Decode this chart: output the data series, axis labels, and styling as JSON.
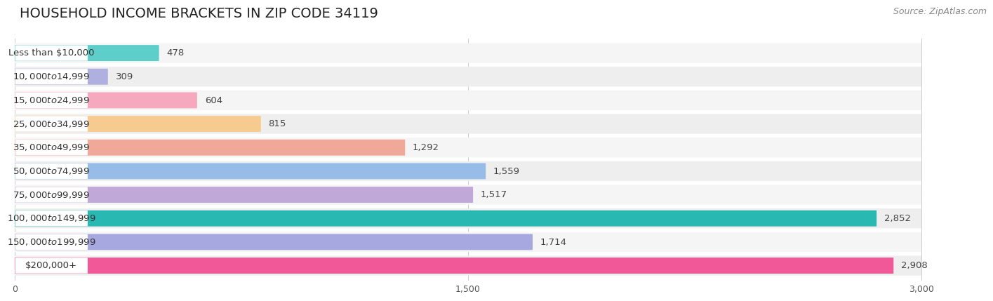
{
  "title": "HOUSEHOLD INCOME BRACKETS IN ZIP CODE 34119",
  "source": "Source: ZipAtlas.com",
  "categories": [
    "Less than $10,000",
    "$10,000 to $14,999",
    "$15,000 to $24,999",
    "$25,000 to $34,999",
    "$35,000 to $49,999",
    "$50,000 to $74,999",
    "$75,000 to $99,999",
    "$100,000 to $149,999",
    "$150,000 to $199,999",
    "$200,000+"
  ],
  "values": [
    478,
    309,
    604,
    815,
    1292,
    1559,
    1517,
    2852,
    1714,
    2908
  ],
  "bar_colors": [
    "#5ececa",
    "#b0b0e0",
    "#f5a8be",
    "#f7ca90",
    "#f0a898",
    "#98bce8",
    "#c0a8d8",
    "#2ab8b2",
    "#a8a8e0",
    "#f05898"
  ],
  "row_bg_colors": [
    "#f5f5f5",
    "#eeeeee"
  ],
  "xlim": [
    0,
    3000
  ],
  "xticks": [
    0,
    1500,
    3000
  ],
  "background_color": "#ffffff",
  "title_fontsize": 14,
  "label_fontsize": 9.5,
  "value_fontsize": 9.5,
  "source_fontsize": 9
}
